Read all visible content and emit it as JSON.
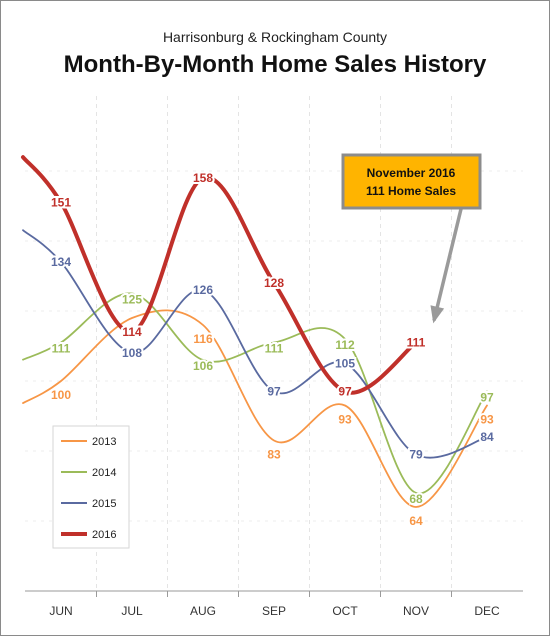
{
  "title": {
    "subtitle": "Harrisonburg & Rockingham County",
    "main": "Month-By-Month Home Sales History"
  },
  "chart_data": {
    "type": "line",
    "categories": [
      "JUN",
      "JUL",
      "AUG",
      "SEP",
      "OCT",
      "NOV",
      "DEC"
    ],
    "series": [
      {
        "name": "2013",
        "color": "#f79646",
        "values": [
          100,
          118,
          116,
          83,
          93,
          64,
          93
        ]
      },
      {
        "name": "2014",
        "color": "#9bbb59",
        "values": [
          111,
          125,
          106,
          111,
          112,
          68,
          97
        ]
      },
      {
        "name": "2015",
        "color": "#5a6aa0",
        "values": [
          134,
          108,
          126,
          97,
          105,
          79,
          84
        ]
      },
      {
        "name": "2016",
        "color": "#c0302a",
        "values": [
          151,
          114,
          158,
          128,
          97,
          111,
          null
        ]
      }
    ],
    "ylim": [
      40,
      180
    ],
    "grid": true,
    "legend": "bottom-left",
    "annotation": {
      "line1": "November 2016",
      "line2": "111 Home Sales",
      "target_category": "NOV",
      "target_series": "2016",
      "fill": "#ffb400",
      "border": "#8c8c8c"
    }
  }
}
